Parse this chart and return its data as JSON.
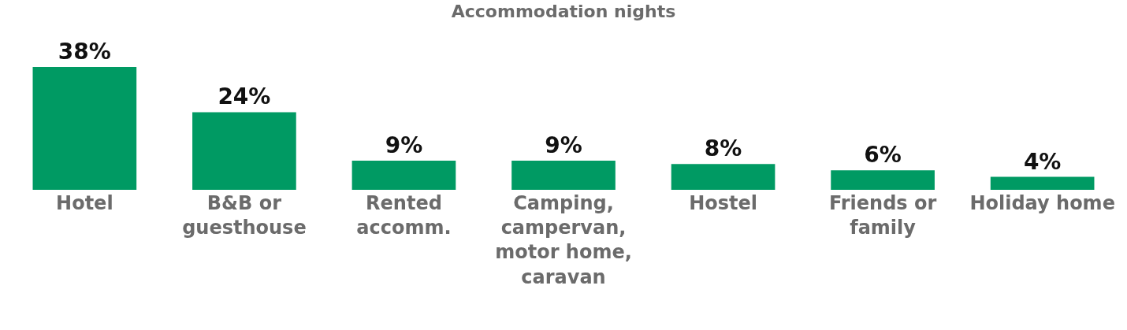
{
  "chart_data": {
    "type": "bar",
    "title": "Accommodation nights",
    "categories": [
      "Hotel",
      "B&B or guesthouse",
      "Rented accomm.",
      "Camping, campervan, motor home, caravan",
      "Hostel",
      "Friends or family",
      "Holiday home"
    ],
    "values": [
      38,
      24,
      9,
      9,
      8,
      6,
      4
    ],
    "value_labels": [
      "38%",
      "24%",
      "9%",
      "9%",
      "8%",
      "6%",
      "4%"
    ],
    "color": "#009a63"
  }
}
